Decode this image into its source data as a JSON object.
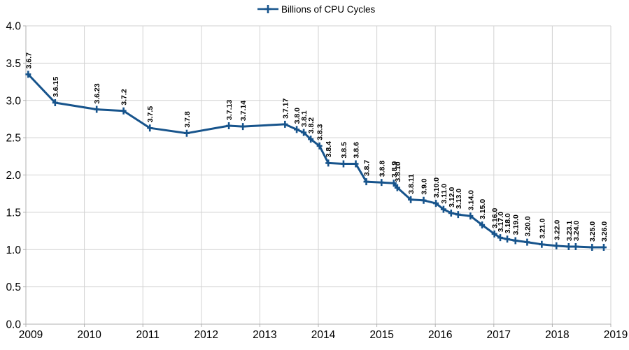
{
  "colors": {
    "series": "#17548c",
    "grid": "#d2d2d2",
    "axis": "#b0b0b0",
    "text": "#000000",
    "background": "#ffffff"
  },
  "legend": {
    "label": "Billions of CPU Cycles"
  },
  "chart_data": {
    "type": "line",
    "title": "",
    "legend_label": "Billions of CPU Cycles",
    "legend_position": "top-center",
    "marker": "plus",
    "grid": true,
    "xlabel": "",
    "ylabel": "",
    "xlim": [
      2009,
      2019
    ],
    "ylim": [
      0,
      4
    ],
    "x_ticks": [
      "2009",
      "2010",
      "2011",
      "2012",
      "2013",
      "2014",
      "2015",
      "2016",
      "2017",
      "2018",
      "2019"
    ],
    "y_ticks": [
      "0.0",
      "0.5",
      "1.0",
      "1.5",
      "2.0",
      "2.5",
      "3.0",
      "3.5",
      "4.0"
    ],
    "points": [
      {
        "label": "3.6.7",
        "x": 2009.04,
        "y": 3.35
      },
      {
        "label": "3.6.15",
        "x": 2009.5,
        "y": 2.97
      },
      {
        "label": "3.6.23",
        "x": 2010.21,
        "y": 2.88
      },
      {
        "label": "3.7.2",
        "x": 2010.67,
        "y": 2.86
      },
      {
        "label": "3.7.5",
        "x": 2011.12,
        "y": 2.63
      },
      {
        "label": "3.7.8",
        "x": 2011.75,
        "y": 2.56
      },
      {
        "label": "3.7.13",
        "x": 2012.47,
        "y": 2.66
      },
      {
        "label": "3.7.14",
        "x": 2012.71,
        "y": 2.65
      },
      {
        "label": "3.7.17",
        "x": 2013.43,
        "y": 2.68
      },
      {
        "label": "3.8.0",
        "x": 2013.63,
        "y": 2.61
      },
      {
        "label": "3.8.1",
        "x": 2013.75,
        "y": 2.57
      },
      {
        "label": "3.8.2",
        "x": 2013.87,
        "y": 2.48
      },
      {
        "label": "3.8.3",
        "x": 2014.02,
        "y": 2.39
      },
      {
        "label": "3.8.4",
        "x": 2014.17,
        "y": 2.16
      },
      {
        "label": "3.8.5",
        "x": 2014.43,
        "y": 2.15
      },
      {
        "label": "3.8.6",
        "x": 2014.64,
        "y": 2.15
      },
      {
        "label": "3.8.7",
        "x": 2014.82,
        "y": 1.91
      },
      {
        "label": "3.8.8",
        "x": 2015.08,
        "y": 1.9
      },
      {
        "label": "3.8.9",
        "x": 2015.29,
        "y": 1.89
      },
      {
        "label": "3.8.10",
        "x": 2015.35,
        "y": 1.83
      },
      {
        "label": "3.8.11",
        "x": 2015.58,
        "y": 1.67
      },
      {
        "label": "3.9.0",
        "x": 2015.8,
        "y": 1.66
      },
      {
        "label": "3.10.0",
        "x": 2016.01,
        "y": 1.62
      },
      {
        "label": "3.11.0",
        "x": 2016.14,
        "y": 1.54
      },
      {
        "label": "3.12.0",
        "x": 2016.27,
        "y": 1.49
      },
      {
        "label": "3.13.0",
        "x": 2016.39,
        "y": 1.47
      },
      {
        "label": "3.14.0",
        "x": 2016.6,
        "y": 1.45
      },
      {
        "label": "3.15.0",
        "x": 2016.8,
        "y": 1.33
      },
      {
        "label": "3.16.0",
        "x": 2017.01,
        "y": 1.21
      },
      {
        "label": "3.17.0",
        "x": 2017.11,
        "y": 1.16
      },
      {
        "label": "3.18.0",
        "x": 2017.23,
        "y": 1.14
      },
      {
        "label": "3.19.0",
        "x": 2017.37,
        "y": 1.12
      },
      {
        "label": "3.20.0",
        "x": 2017.57,
        "y": 1.1
      },
      {
        "label": "3.21.0",
        "x": 2017.82,
        "y": 1.07
      },
      {
        "label": "3.22.0",
        "x": 2018.07,
        "y": 1.05
      },
      {
        "label": "3.23.1",
        "x": 2018.28,
        "y": 1.04
      },
      {
        "label": "3.24.0",
        "x": 2018.4,
        "y": 1.04
      },
      {
        "label": "3.25.0",
        "x": 2018.68,
        "y": 1.03
      },
      {
        "label": "3.26.0",
        "x": 2018.88,
        "y": 1.03
      }
    ]
  }
}
